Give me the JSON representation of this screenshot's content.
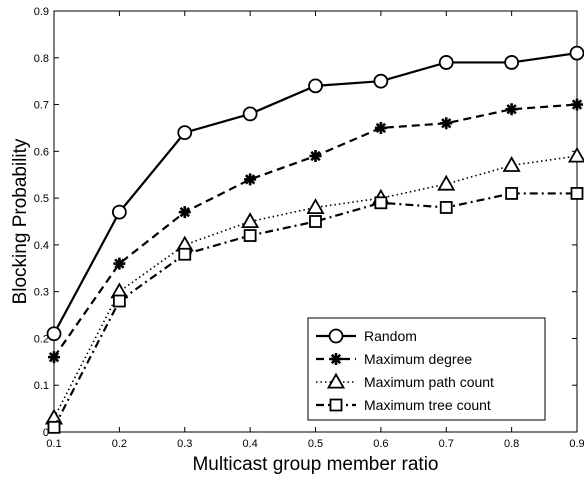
{
  "chart_data": {
    "type": "line",
    "title": "",
    "xlabel": "Multicast group member ratio",
    "ylabel": "Blocking Probability",
    "xlim": [
      0.1,
      0.9
    ],
    "ylim": [
      0,
      0.9
    ],
    "x": [
      0.1,
      0.2,
      0.3,
      0.4,
      0.5,
      0.6,
      0.7,
      0.8,
      0.9
    ],
    "x_tick_labels": [
      "0.1",
      "0.2",
      "0.3",
      "0.4",
      "0.5",
      "0.6",
      "0.7",
      "0.8",
      "0.9"
    ],
    "y_ticks": [
      0,
      0.1,
      0.2,
      0.3,
      0.4,
      0.5,
      0.6,
      0.7,
      0.8,
      0.9
    ],
    "y_tick_labels": [
      "0",
      "0.1",
      "0.2",
      "0.3",
      "0.4",
      "0.5",
      "0.6",
      "0.7",
      "0.8",
      "0.9"
    ],
    "grid": false,
    "legend_position": "bottom-right",
    "series": [
      {
        "name": "Random",
        "values": [
          0.21,
          0.47,
          0.64,
          0.68,
          0.74,
          0.75,
          0.79,
          0.79,
          0.81
        ],
        "marker": "circle",
        "dash": "solid",
        "color": "#000000"
      },
      {
        "name": "Maximum degree",
        "values": [
          0.16,
          0.36,
          0.47,
          0.54,
          0.59,
          0.65,
          0.66,
          0.69,
          0.7
        ],
        "marker": "asterisk",
        "dash": "dashed",
        "color": "#000000"
      },
      {
        "name": "Maximum path count",
        "values": [
          0.03,
          0.3,
          0.4,
          0.45,
          0.48,
          0.5,
          0.53,
          0.57,
          0.59
        ],
        "marker": "triangle",
        "dash": "dotted",
        "color": "#000000"
      },
      {
        "name": "Maximum tree count",
        "values": [
          0.01,
          0.28,
          0.38,
          0.42,
          0.45,
          0.49,
          0.48,
          0.51,
          0.51
        ],
        "marker": "square",
        "dash": "dashdot",
        "color": "#000000"
      }
    ]
  }
}
